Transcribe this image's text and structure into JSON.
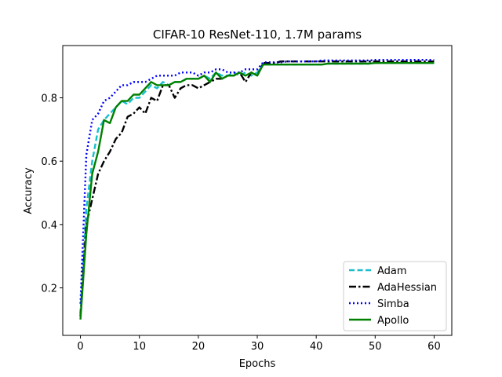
{
  "chart_data": {
    "type": "line",
    "title": "CIFAR-10 ResNet-110, 1.7M params",
    "xlabel": "Epochs",
    "ylabel": "Accuracy",
    "xlim": [
      -3,
      63
    ],
    "ylim": [
      0.05,
      0.965
    ],
    "xticks": [
      0,
      10,
      20,
      30,
      40,
      50,
      60
    ],
    "yticks": [
      0.2,
      0.4,
      0.6,
      0.8
    ],
    "grid": false,
    "legend_position": "lower-right",
    "series": [
      {
        "name": "Adam",
        "color": "#17becf",
        "dash": "dashed",
        "x": [
          0,
          1,
          2,
          3,
          4,
          5,
          6,
          7,
          8,
          9,
          10,
          11,
          12,
          13,
          14,
          15,
          16,
          17,
          18,
          19,
          20,
          21,
          22,
          23,
          24,
          25,
          26,
          27,
          28,
          29,
          30,
          31,
          32,
          33,
          34,
          35,
          36,
          37,
          38,
          39,
          40,
          41,
          42,
          43,
          44,
          45,
          46,
          47,
          48,
          49,
          50,
          51,
          52,
          53,
          54,
          55,
          56,
          57,
          58,
          59,
          60
        ],
        "y": [
          0.12,
          0.45,
          0.6,
          0.7,
          0.73,
          0.75,
          0.77,
          0.79,
          0.78,
          0.8,
          0.8,
          0.82,
          0.84,
          0.83,
          0.85,
          0.84,
          0.85,
          0.85,
          0.86,
          0.86,
          0.86,
          0.87,
          0.86,
          0.88,
          0.87,
          0.87,
          0.88,
          0.87,
          0.88,
          0.87,
          0.88,
          0.905,
          0.905,
          0.905,
          0.905,
          0.905,
          0.905,
          0.905,
          0.905,
          0.905,
          0.905,
          0.905,
          0.908,
          0.908,
          0.908,
          0.908,
          0.908,
          0.908,
          0.908,
          0.908,
          0.91,
          0.91,
          0.91,
          0.91,
          0.91,
          0.91,
          0.91,
          0.91,
          0.91,
          0.91,
          0.91
        ]
      },
      {
        "name": "AdaHessian",
        "color": "#000000",
        "dash": "dashdot",
        "x": [
          0,
          1,
          2,
          3,
          4,
          5,
          6,
          7,
          8,
          9,
          10,
          11,
          12,
          13,
          14,
          15,
          16,
          17,
          18,
          19,
          20,
          21,
          22,
          23,
          24,
          25,
          26,
          27,
          28,
          29,
          30,
          31,
          32,
          33,
          34,
          35,
          36,
          37,
          38,
          39,
          40,
          41,
          42,
          43,
          44,
          45,
          46,
          47,
          48,
          49,
          50,
          51,
          52,
          53,
          54,
          55,
          56,
          57,
          58,
          59,
          60
        ],
        "y": [
          0.11,
          0.4,
          0.48,
          0.56,
          0.6,
          0.63,
          0.67,
          0.69,
          0.74,
          0.75,
          0.77,
          0.75,
          0.8,
          0.79,
          0.84,
          0.84,
          0.8,
          0.83,
          0.84,
          0.84,
          0.83,
          0.84,
          0.85,
          0.86,
          0.86,
          0.87,
          0.87,
          0.88,
          0.85,
          0.88,
          0.87,
          0.91,
          0.91,
          0.91,
          0.915,
          0.915,
          0.915,
          0.915,
          0.915,
          0.915,
          0.915,
          0.915,
          0.915,
          0.915,
          0.915,
          0.915,
          0.915,
          0.915,
          0.915,
          0.915,
          0.915,
          0.915,
          0.915,
          0.915,
          0.915,
          0.915,
          0.915,
          0.915,
          0.915,
          0.915,
          0.915
        ]
      },
      {
        "name": "Simba",
        "color": "#0000ff",
        "dash": "dotted",
        "x": [
          0,
          1,
          2,
          3,
          4,
          5,
          6,
          7,
          8,
          9,
          10,
          11,
          12,
          13,
          14,
          15,
          16,
          17,
          18,
          19,
          20,
          21,
          22,
          23,
          24,
          25,
          26,
          27,
          28,
          29,
          30,
          31,
          32,
          33,
          34,
          35,
          36,
          37,
          38,
          39,
          40,
          41,
          42,
          43,
          44,
          45,
          46,
          47,
          48,
          49,
          50,
          51,
          52,
          53,
          54,
          55,
          56,
          57,
          58,
          59,
          60
        ],
        "y": [
          0.15,
          0.62,
          0.73,
          0.75,
          0.79,
          0.8,
          0.82,
          0.84,
          0.84,
          0.85,
          0.85,
          0.85,
          0.86,
          0.87,
          0.87,
          0.87,
          0.87,
          0.88,
          0.88,
          0.88,
          0.87,
          0.88,
          0.88,
          0.89,
          0.89,
          0.88,
          0.88,
          0.88,
          0.89,
          0.89,
          0.89,
          0.912,
          0.912,
          0.912,
          0.912,
          0.915,
          0.915,
          0.915,
          0.915,
          0.915,
          0.915,
          0.918,
          0.918,
          0.918,
          0.918,
          0.918,
          0.918,
          0.918,
          0.918,
          0.918,
          0.92,
          0.92,
          0.92,
          0.92,
          0.92,
          0.92,
          0.92,
          0.92,
          0.92,
          0.92,
          0.92
        ]
      },
      {
        "name": "Apollo",
        "color": "#008000",
        "dash": "solid",
        "x": [
          0,
          1,
          2,
          3,
          4,
          5,
          6,
          7,
          8,
          9,
          10,
          11,
          12,
          13,
          14,
          15,
          16,
          17,
          18,
          19,
          20,
          21,
          22,
          23,
          24,
          25,
          26,
          27,
          28,
          29,
          30,
          31,
          32,
          33,
          34,
          35,
          36,
          37,
          38,
          39,
          40,
          41,
          42,
          43,
          44,
          45,
          46,
          47,
          48,
          49,
          50,
          51,
          52,
          53,
          54,
          55,
          56,
          57,
          58,
          59,
          60
        ],
        "y": [
          0.1,
          0.37,
          0.56,
          0.63,
          0.73,
          0.72,
          0.77,
          0.79,
          0.79,
          0.81,
          0.81,
          0.83,
          0.85,
          0.84,
          0.84,
          0.84,
          0.85,
          0.85,
          0.86,
          0.86,
          0.86,
          0.87,
          0.85,
          0.88,
          0.86,
          0.87,
          0.87,
          0.88,
          0.87,
          0.88,
          0.87,
          0.905,
          0.905,
          0.905,
          0.905,
          0.905,
          0.905,
          0.905,
          0.905,
          0.905,
          0.905,
          0.905,
          0.908,
          0.908,
          0.908,
          0.908,
          0.908,
          0.908,
          0.908,
          0.908,
          0.91,
          0.91,
          0.91,
          0.91,
          0.91,
          0.91,
          0.91,
          0.91,
          0.91,
          0.91,
          0.91
        ]
      }
    ]
  }
}
